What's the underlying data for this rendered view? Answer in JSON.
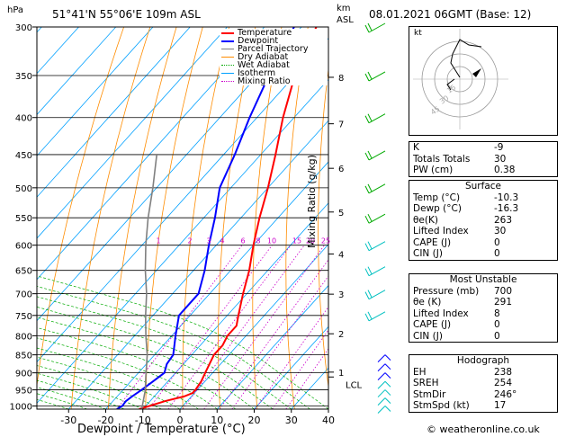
{
  "header": {
    "hpa_unit": "hPa",
    "location": "51°41'N 55°06'E 109m ASL",
    "km_unit": "km",
    "asl_unit": "ASL",
    "datetime": "08.01.2021 06GMT (Base: 12)"
  },
  "legend": [
    {
      "label": "Temperature",
      "color": "#ff0000"
    },
    {
      "label": "Dewpoint",
      "color": "#0000ff"
    },
    {
      "label": "Parcel Trajectory",
      "color": "#808080"
    },
    {
      "label": "Dry Adiabat",
      "color": "#ff8c00"
    },
    {
      "label": "Wet Adiabat",
      "color": "#00aa00"
    },
    {
      "label": "Isotherm",
      "color": "#00a0ff"
    },
    {
      "label": "Mixing Ratio",
      "color": "#cc00cc"
    }
  ],
  "chart_data": {
    "type": "line",
    "xlabel": "Dewpoint / Temperature (°C)",
    "ylabel": "hPa",
    "x_ticks": [
      -30,
      -20,
      -10,
      0,
      10,
      20,
      30,
      40
    ],
    "pressure_levels": [
      300,
      350,
      400,
      450,
      500,
      550,
      600,
      650,
      700,
      750,
      800,
      850,
      900,
      950,
      1000
    ],
    "km_ticks": [
      {
        "label": "8",
        "p": 352
      },
      {
        "label": "7",
        "p": 408
      },
      {
        "label": "6",
        "p": 470
      },
      {
        "label": "5",
        "p": 540
      },
      {
        "label": "4",
        "p": 617
      },
      {
        "label": "3",
        "p": 701
      },
      {
        "label": "2",
        "p": 795
      },
      {
        "label": "1",
        "p": 898
      },
      {
        "label": "LCL",
        "p": 912
      }
    ],
    "mixing_ratio_label": "Mixing Ratio (g/kg)",
    "mixing_ratios": [
      "1",
      "2",
      "3",
      "4",
      "6",
      "8",
      "10",
      "15",
      "20",
      "25"
    ],
    "series": [
      {
        "name": "Temperature",
        "color": "#ff0000",
        "points": [
          [
            1010,
            -11
          ],
          [
            1000,
            -9
          ],
          [
            985,
            -6
          ],
          [
            970,
            -2
          ],
          [
            960,
            -0.5
          ],
          [
            950,
            -0.5
          ],
          [
            925,
            -1
          ],
          [
            900,
            -2
          ],
          [
            875,
            -3
          ],
          [
            850,
            -4
          ],
          [
            825,
            -4
          ],
          [
            800,
            -5
          ],
          [
            775,
            -5
          ],
          [
            750,
            -7
          ],
          [
            700,
            -11
          ],
          [
            650,
            -15
          ],
          [
            600,
            -20
          ],
          [
            550,
            -25
          ],
          [
            500,
            -30
          ],
          [
            450,
            -36
          ],
          [
            400,
            -43
          ],
          [
            350,
            -50
          ],
          [
            300,
            -56
          ]
        ]
      },
      {
        "name": "Dewpoint",
        "color": "#0000ff",
        "points": [
          [
            1010,
            -17
          ],
          [
            1000,
            -16.3
          ],
          [
            985,
            -16.5
          ],
          [
            970,
            -16
          ],
          [
            950,
            -15
          ],
          [
            925,
            -14
          ],
          [
            900,
            -13
          ],
          [
            875,
            -14.5
          ],
          [
            850,
            -15
          ],
          [
            800,
            -19
          ],
          [
            750,
            -23
          ],
          [
            700,
            -23
          ],
          [
            650,
            -27
          ],
          [
            600,
            -32
          ],
          [
            550,
            -37
          ],
          [
            500,
            -43
          ],
          [
            450,
            -47
          ],
          [
            400,
            -52
          ],
          [
            350,
            -57
          ],
          [
            300,
            -62
          ]
        ]
      },
      {
        "name": "Parcel Trajectory",
        "color": "#808080",
        "points": [
          [
            1010,
            -10.3
          ],
          [
            950,
            -14
          ],
          [
            912,
            -17
          ],
          [
            850,
            -22
          ],
          [
            800,
            -27
          ],
          [
            750,
            -32
          ],
          [
            700,
            -37
          ],
          [
            650,
            -43
          ],
          [
            600,
            -49
          ],
          [
            550,
            -55
          ],
          [
            500,
            -61
          ],
          [
            450,
            -68
          ]
        ]
      }
    ]
  },
  "hodograph": {
    "unit": "kt",
    "rings": [
      "15",
      "30",
      "45"
    ]
  },
  "indices": [
    {
      "label": "K",
      "value": "-9"
    },
    {
      "label": "Totals Totals",
      "value": "30"
    },
    {
      "label": "PW (cm)",
      "value": "0.38"
    }
  ],
  "surface": {
    "title": "Surface",
    "rows": [
      {
        "label": "Temp (°C)",
        "value": "-10.3"
      },
      {
        "label": "Dewp (°C)",
        "value": "-16.3"
      },
      {
        "label": "θe(K)",
        "value": "263"
      },
      {
        "label": "Lifted Index",
        "value": "30"
      },
      {
        "label": "CAPE (J)",
        "value": "0"
      },
      {
        "label": "CIN (J)",
        "value": "0"
      }
    ]
  },
  "most_unstable": {
    "title": "Most Unstable",
    "rows": [
      {
        "label": "Pressure (mb)",
        "value": "700"
      },
      {
        "label": "θe (K)",
        "value": "291"
      },
      {
        "label": "Lifted Index",
        "value": "8"
      },
      {
        "label": "CAPE (J)",
        "value": "0"
      },
      {
        "label": "CIN (J)",
        "value": "0"
      }
    ]
  },
  "hodograph_params": {
    "title": "Hodograph",
    "rows": [
      {
        "label": "EH",
        "value": "238"
      },
      {
        "label": "SREH",
        "value": "254"
      },
      {
        "label": "StmDir",
        "value": "246°"
      },
      {
        "label": "StmSpd (kt)",
        "value": "17"
      }
    ]
  },
  "footer": "© weatheronline.co.uk"
}
